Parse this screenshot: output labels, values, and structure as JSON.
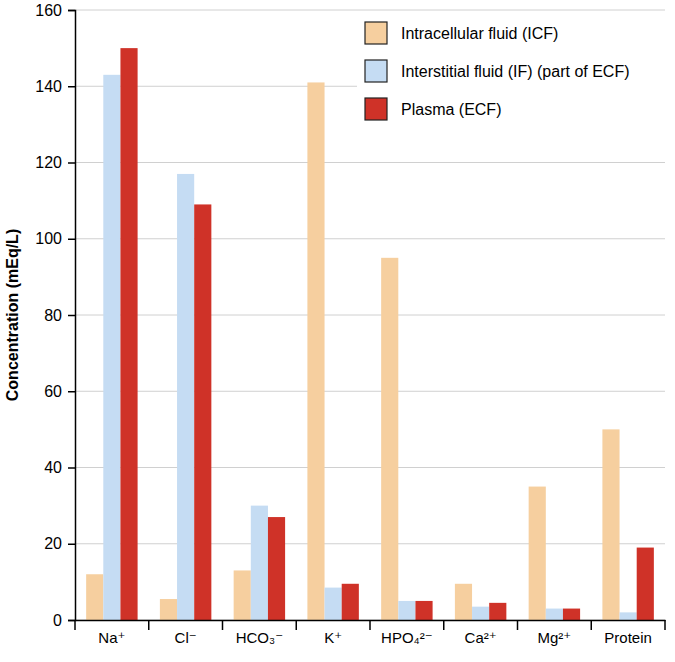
{
  "chart_data": {
    "type": "bar",
    "y_label": "Concentration (mEq/L)",
    "categories": [
      "Na⁺",
      "Cl⁻",
      "HCO₃⁻",
      "K⁺",
      "HPO₄²⁻",
      "Ca²⁺",
      "Mg²⁺",
      "Protein"
    ],
    "series": [
      {
        "name": "Intracellular fluid (ICF)",
        "color": "#f6cf9f",
        "values": [
          12,
          5.5,
          13,
          141,
          95,
          9.5,
          35,
          50
        ]
      },
      {
        "name": "Interstitial fluid (IF) (part of ECF)",
        "color": "#c5dcf3",
        "values": [
          143,
          117,
          30,
          8.5,
          5,
          3.5,
          3,
          2
        ]
      },
      {
        "name": "Plasma (ECF)",
        "color": "#cf3228",
        "values": [
          150,
          109,
          27,
          9.5,
          5,
          4.5,
          3,
          19
        ]
      }
    ],
    "ylim": [
      0,
      160
    ],
    "yticks": [
      0,
      20,
      40,
      60,
      80,
      100,
      120,
      140,
      160
    ],
    "grid": true,
    "legend": "top-right"
  }
}
